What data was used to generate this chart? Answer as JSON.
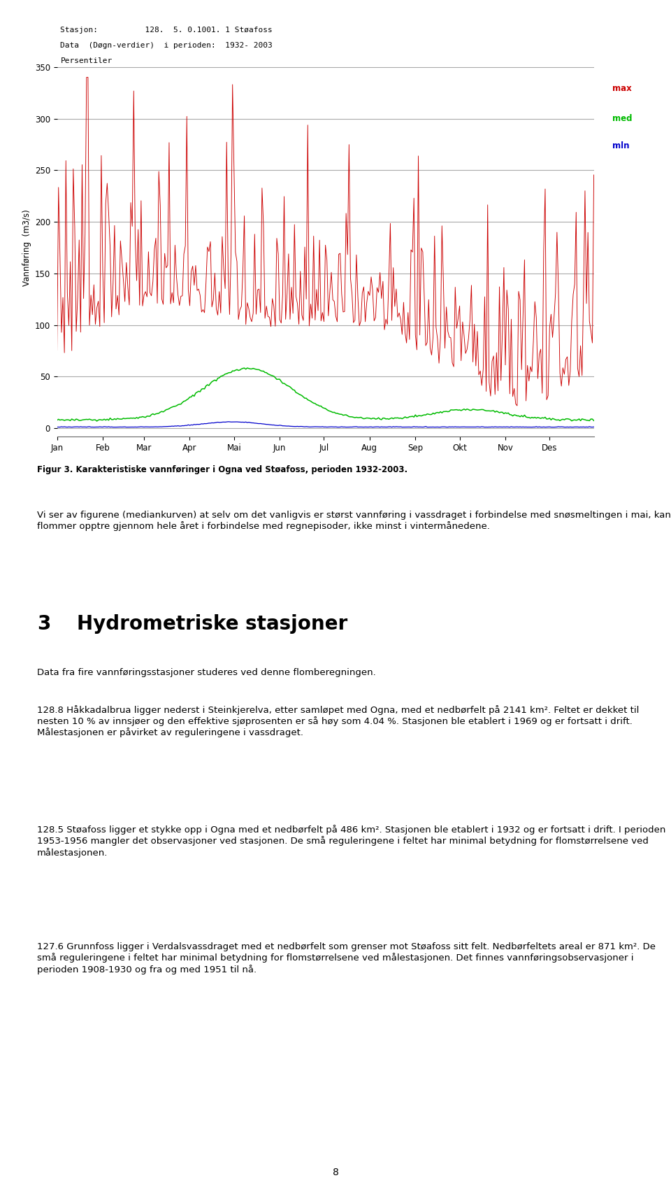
{
  "chart_header_line1": "Stasjon:          128.  5. 0.1001. 1 Støafoss",
  "chart_header_line2": "Data  (Døgn-verdier)  i perioden:  1932- 2003",
  "chart_header_line3": "Persentiler",
  "ylabel": "Vannføring  (m3/s)",
  "yticks": [
    0,
    50,
    100,
    150,
    200,
    250,
    300,
    350
  ],
  "xticklabels": [
    "Jan",
    "Feb",
    "Mar",
    "Apr",
    "Mai",
    "Jun",
    "Jul",
    "Aug",
    "Sep",
    "Okt",
    "Nov",
    "Des"
  ],
  "legend_labels": [
    "max",
    "med",
    "mln"
  ],
  "legend_colors": [
    "#cc0000",
    "#00bb00",
    "#0000cc"
  ],
  "fig_caption": "Figur 3. Karakteristiske vannføringer i Ogna ved Støafoss, perioden 1932-2003.",
  "para1": "Vi ser av figurene (mediankurven) at selv om det vanligvis er størst vannføring i vassdraget i forbindelse med snøsmeltingen i mai, kan flommer opptre gjennom hele året i forbindelse med regnepisoder, ikke minst i vintermånedene.",
  "section_num": "3",
  "section_title": "Hydrometriske stasjoner",
  "section_intro": "Data fra fire vannføringsstasjoner studeres ved denne flomberegningen.",
  "para2": "128.8 Håkkadalbrua ligger nederst i Steinkjerelva, etter samløpet med Ogna, med et nedbørfelt på 2141 km². Feltet er dekket til nesten 10 % av innsjøer og den effektive sjøprosenten er så høy som 4.04 %. Stasjonen ble etablert i 1969 og er fortsatt i drift. Målestasjonen er påvirket av reguleringene i vassdraget.",
  "para3": "128.5 Støafoss ligger et stykke opp i Ogna med et nedbørfelt på 486 km². Stasjonen ble etablert i 1932 og er fortsatt i drift. I perioden 1953-1956 mangler det observasjoner ved stasjonen. De små reguleringene i feltet har minimal betydning for flomstørrelsene ved målestasjonen.",
  "para4": "127.6 Grunnfoss ligger i Verdalsvassdraget med et nedbørfelt som grenser mot Støafoss sitt felt. Nedbørfeltets areal er 871 km². De små reguleringene i feltet har minimal betydning for flomstørrelsene ved målestasjonen. Det finnes vannføringsobservasjoner i perioden 1908-1930 og fra og med 1951 til nå.",
  "page_number": "8",
  "bg_color": "#ffffff",
  "chart_bg": "#ffffff",
  "grid_color": "#aaaaaa",
  "max_color": "#cc0000",
  "med_color": "#00bb00",
  "mln_color": "#0000cc"
}
